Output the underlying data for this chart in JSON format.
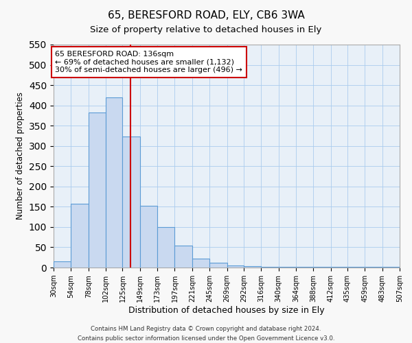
{
  "title1": "65, BERESFORD ROAD, ELY, CB6 3WA",
  "title2": "Size of property relative to detached houses in Ely",
  "xlabel": "Distribution of detached houses by size in Ely",
  "ylabel": "Number of detached properties",
  "bar_edges": [
    30,
    54,
    78,
    102,
    125,
    149,
    173,
    197,
    221,
    245,
    269,
    292,
    316,
    340,
    364,
    388,
    412,
    435,
    459,
    483,
    507
  ],
  "bar_heights": [
    15,
    157,
    382,
    420,
    323,
    153,
    100,
    55,
    22,
    12,
    5,
    3,
    2,
    2,
    1,
    1,
    1,
    1,
    1,
    1
  ],
  "bar_color": "#c9d9f0",
  "bar_edge_color": "#5b9bd5",
  "vline_x": 136,
  "vline_color": "#cc0000",
  "ylim": [
    0,
    550
  ],
  "yticks": [
    0,
    50,
    100,
    150,
    200,
    250,
    300,
    350,
    400,
    450,
    500,
    550
  ],
  "annotation_title": "65 BERESFORD ROAD: 136sqm",
  "annotation_line1": "← 69% of detached houses are smaller (1,132)",
  "annotation_line2": "30% of semi-detached houses are larger (496) →",
  "annotation_box_color": "#ffffff",
  "annotation_box_edge": "#cc0000",
  "grid_color": "#aaccee",
  "background_color": "#e8f0f8",
  "fig_background": "#f8f8f8",
  "footer_line1": "Contains HM Land Registry data © Crown copyright and database right 2024.",
  "footer_line2": "Contains public sector information licensed under the Open Government Licence v3.0.",
  "tick_labels": [
    "30sqm",
    "54sqm",
    "78sqm",
    "102sqm",
    "125sqm",
    "149sqm",
    "173sqm",
    "197sqm",
    "221sqm",
    "245sqm",
    "269sqm",
    "292sqm",
    "316sqm",
    "340sqm",
    "364sqm",
    "388sqm",
    "412sqm",
    "435sqm",
    "459sqm",
    "483sqm",
    "507sqm"
  ]
}
